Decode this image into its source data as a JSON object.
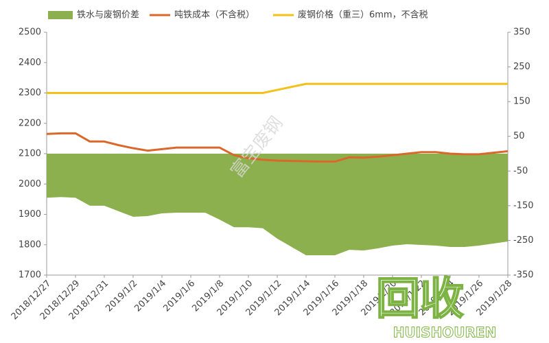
{
  "chart_data": {
    "type": "combo",
    "categories": [
      "2018/12/27",
      null,
      "2018/12/29",
      null,
      "2018/12/31",
      null,
      "2019/1/2",
      null,
      "2019/1/4",
      null,
      "2019/1/6",
      null,
      "2019/1/8",
      null,
      "2019/1/10",
      null,
      "2019/1/12",
      null,
      "2019/1/14",
      null,
      "2019/1/16",
      null,
      "2019/1/18",
      null,
      "2019/1/20",
      null,
      "2019/1/22",
      null,
      "2019/1/24",
      null,
      "2019/1/26",
      null,
      "2019/1/28"
    ],
    "series": [
      {
        "name": "铁水与废钢价差",
        "kind": "area",
        "axis": "y2",
        "color": "#8db04f",
        "values": [
          -127,
          -125,
          -127,
          -150,
          -150,
          -166,
          -182,
          -180,
          -172,
          -170,
          -170,
          -170,
          -190,
          -212,
          -212,
          -215,
          -245,
          -269,
          -293,
          -293,
          -293,
          -277,
          -279,
          -273,
          -265,
          -261,
          -263,
          -265,
          -269,
          -269,
          -265,
          -259,
          -253
        ]
      },
      {
        "name": "吨铁成本（不含税）",
        "kind": "line",
        "color": "#d9682a",
        "values": [
          2165,
          2167,
          2167,
          2140,
          2140,
          2128,
          2118,
          2110,
          2115,
          2120,
          2120,
          2120,
          2120,
          2095,
          2085,
          2080,
          2077,
          2076,
          2075,
          2074,
          2074,
          2088,
          2087,
          2090,
          2095,
          2100,
          2105,
          2105,
          2100,
          2098,
          2098,
          2103,
          2108
        ]
      },
      {
        "name": "废钢价格（重三）6mm，不含税",
        "kind": "line",
        "color": "#f2c21b",
        "values": [
          2300,
          2300,
          2300,
          2300,
          2300,
          2300,
          2300,
          2300,
          2300,
          2300,
          2300,
          2300,
          2300,
          2300,
          2300,
          2300,
          2310,
          2320,
          2330,
          2330,
          2330,
          2330,
          2330,
          2330,
          2330,
          2330,
          2330,
          2330,
          2330,
          2330,
          2330,
          2330,
          2330
        ]
      }
    ],
    "ylim": [
      1700,
      2500
    ],
    "yticks": [
      1700,
      1800,
      1900,
      2000,
      2100,
      2200,
      2300,
      2400,
      2500
    ],
    "y2lim": [
      -350,
      350
    ],
    "y2ticks": [
      -350,
      -250,
      -150,
      -50,
      50,
      150,
      250,
      350
    ],
    "legend": "top",
    "annotations": [
      "富宝废钢",
      "回收",
      "HUISHOUREN"
    ]
  }
}
